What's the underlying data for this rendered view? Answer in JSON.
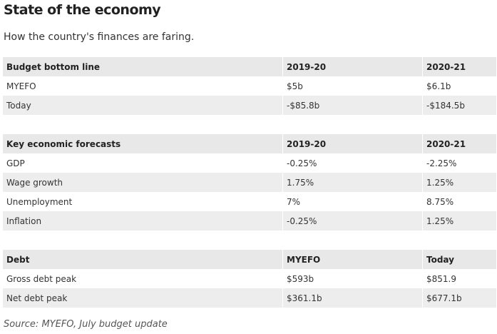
{
  "title": "State of the economy",
  "subtitle": "How the country's finances are faring.",
  "budget_table": {
    "headers": [
      "Budget bottom line",
      "2019-20",
      "2020-21"
    ],
    "rows": [
      [
        "MYEFO",
        "$5b",
        "$6.1b"
      ],
      [
        "Today",
        "-$85.8b",
        "-$184.5b"
      ]
    ]
  },
  "forecasts_table": {
    "headers": [
      "Key economic forecasts",
      "2019-20",
      "2020-21"
    ],
    "rows": [
      [
        "GDP",
        "-0.25%",
        "-2.25%"
      ],
      [
        "Wage growth",
        "1.75%",
        "1.25%"
      ],
      [
        "Unemployment",
        "7%",
        "8.75%"
      ],
      [
        "Inflation",
        "-0.25%",
        "1.25%"
      ]
    ]
  },
  "debt_table": {
    "headers": [
      "Debt",
      "MYEFO",
      "Today"
    ],
    "rows": [
      [
        "Gross debt peak",
        "$593b",
        "$851.9"
      ],
      [
        "Net debt peak",
        "$361.1b",
        "$677.1b"
      ]
    ]
  },
  "source": "Source: MYEFO, July budget update"
}
